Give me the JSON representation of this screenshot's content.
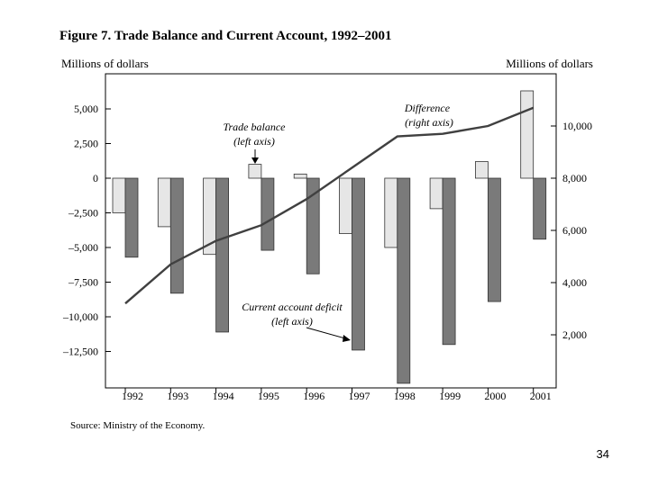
{
  "page": {
    "title": "Figure 7. Trade Balance and Current Account, 1992–2001",
    "source": "Source: Ministry of the Economy.",
    "page_number": "34"
  },
  "axis_units": {
    "left": "Millions of dollars",
    "right": "Millions of dollars"
  },
  "chart_data": {
    "type": "bar",
    "title": "Figure 7. Trade Balance and Current Account, 1992–2001",
    "categories": [
      "1992",
      "1993",
      "1994",
      "1995",
      "1996",
      "1997",
      "1998",
      "1999",
      "2000",
      "2001"
    ],
    "series": [
      {
        "name": "Trade balance",
        "axis": "left",
        "kind": "bar",
        "color": "#e6e6e6",
        "values": [
          -2500,
          -3500,
          -5500,
          1000,
          300,
          -4000,
          -5000,
          -2200,
          1200,
          6300
        ]
      },
      {
        "name": "Current account deficit",
        "axis": "left",
        "kind": "bar",
        "color": "#7a7a7a",
        "values": [
          -5700,
          -8300,
          -11100,
          -5200,
          -6900,
          -12400,
          -14800,
          -12000,
          -8900,
          -4400
        ]
      },
      {
        "name": "Difference",
        "axis": "right",
        "kind": "line",
        "color": "#404040",
        "values": [
          3200,
          4700,
          5600,
          6200,
          7200,
          8400,
          9600,
          9700,
          10000,
          10700
        ]
      }
    ],
    "left_axis": {
      "ylim": [
        -14500,
        7500
      ],
      "ticks": [
        5000,
        2500,
        0,
        -2500,
        -5000,
        -7500,
        -10000,
        -12500
      ],
      "tick_labels": [
        "5,000",
        "2,500",
        "0",
        "–2,500",
        "–5,000",
        "–7,500",
        "–10,000",
        "–12,500"
      ]
    },
    "right_axis": {
      "ylim": [
        0,
        12000
      ],
      "ticks": [
        10000,
        8000,
        6000,
        4000,
        2000
      ],
      "tick_labels": [
        "10,000",
        "8,000",
        "6,000",
        "4,000",
        "2,000"
      ]
    },
    "annotations": {
      "trade_balance": [
        "Trade balance",
        "(left axis)"
      ],
      "difference": [
        "Difference",
        "(right axis)"
      ],
      "current_account": [
        "Current account deficit",
        "(left axis)"
      ]
    },
    "grid": false
  }
}
